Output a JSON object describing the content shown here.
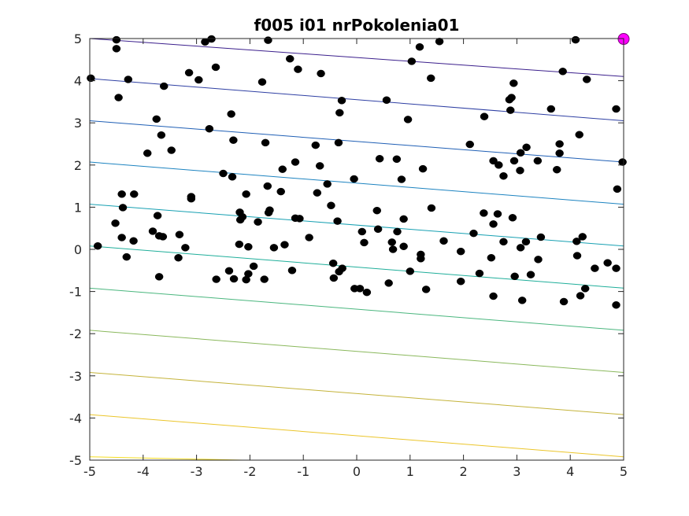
{
  "chart_data": {
    "type": "scatter",
    "title": "f005 i01 nrPokolenia01",
    "xlabel": "",
    "ylabel": "",
    "xlim": [
      -5,
      5
    ],
    "ylim": [
      -5,
      5
    ],
    "xticks": [
      "-5",
      "-4",
      "-3",
      "-2",
      "-1",
      "0",
      "1",
      "2",
      "3",
      "4",
      "5"
    ],
    "yticks": [
      "-5",
      "-4",
      "-3",
      "-2",
      "-1",
      "0",
      "1",
      "2",
      "3",
      "4",
      "5"
    ],
    "grid": false,
    "box": true,
    "contours": {
      "description": "linear function contour lines",
      "levels": [
        {
          "y_at_left": 5.0,
          "y_at_right": 4.1,
          "color": "#3b1f8c"
        },
        {
          "y_at_left": 4.05,
          "y_at_right": 3.05,
          "color": "#2e3fa3"
        },
        {
          "y_at_left": 3.05,
          "y_at_right": 2.07,
          "color": "#1f5fb5"
        },
        {
          "y_at_left": 2.07,
          "y_at_right": 1.07,
          "color": "#1c83c0"
        },
        {
          "y_at_left": 1.07,
          "y_at_right": 0.08,
          "color": "#17a0b2"
        },
        {
          "y_at_left": 0.08,
          "y_at_right": -0.92,
          "color": "#1fae9a"
        },
        {
          "y_at_left": -0.92,
          "y_at_right": -1.92,
          "color": "#4ab67e"
        },
        {
          "y_at_left": -1.92,
          "y_at_right": -2.92,
          "color": "#8ab85c"
        },
        {
          "y_at_left": -2.92,
          "y_at_right": -3.92,
          "color": "#c4b33a"
        },
        {
          "y_at_left": -3.92,
          "y_at_right": -4.92,
          "color": "#ebc52a"
        },
        {
          "y_at_left": -4.92,
          "y_at_right": -5.2,
          "color": "#f5dd20"
        }
      ]
    },
    "series": [
      {
        "marker": "filled-circle",
        "color": "#000000",
        "points": [
          [
            -4.5,
            4.97
          ],
          [
            -4.5,
            4.76
          ],
          [
            -4.98,
            4.06
          ],
          [
            -4.28,
            4.03
          ],
          [
            -4.46,
            3.6
          ],
          [
            -3.61,
            3.87
          ],
          [
            -2.72,
            4.99
          ],
          [
            -2.84,
            4.92
          ],
          [
            -2.64,
            4.32
          ],
          [
            -3.14,
            4.19
          ],
          [
            -2.96,
            4.02
          ],
          [
            -1.66,
            4.96
          ],
          [
            -1.77,
            3.97
          ],
          [
            -1.25,
            4.52
          ],
          [
            -1.1,
            4.27
          ],
          [
            -0.67,
            4.17
          ],
          [
            1.55,
            4.93
          ],
          [
            1.18,
            4.8
          ],
          [
            1.03,
            4.46
          ],
          [
            1.39,
            4.06
          ],
          [
            4.1,
            4.97
          ],
          [
            3.86,
            4.22
          ],
          [
            4.31,
            4.03
          ],
          [
            2.94,
            3.94
          ],
          [
            2.86,
            3.55
          ],
          [
            2.9,
            3.6
          ],
          [
            2.39,
            3.15
          ],
          [
            3.64,
            3.33
          ],
          [
            4.86,
            3.33
          ],
          [
            2.88,
            3.3
          ],
          [
            0.56,
            3.54
          ],
          [
            0.96,
            3.08
          ],
          [
            -0.28,
            3.53
          ],
          [
            -0.32,
            3.24
          ],
          [
            -2.35,
            3.21
          ],
          [
            -2.76,
            2.86
          ],
          [
            -3.75,
            3.09
          ],
          [
            -3.66,
            2.71
          ],
          [
            -3.47,
            2.35
          ],
          [
            -3.92,
            2.28
          ],
          [
            -1.71,
            2.53
          ],
          [
            -0.77,
            2.47
          ],
          [
            -0.34,
            2.53
          ],
          [
            -2.31,
            2.59
          ],
          [
            -1.39,
            1.9
          ],
          [
            -1.15,
            2.07
          ],
          [
            -0.69,
            1.98
          ],
          [
            -2.5,
            1.8
          ],
          [
            -2.33,
            1.72
          ],
          [
            -0.55,
            1.55
          ],
          [
            -0.05,
            1.67
          ],
          [
            0.43,
            2.15
          ],
          [
            0.75,
            2.14
          ],
          [
            0.84,
            1.66
          ],
          [
            1.24,
            1.91
          ],
          [
            2.12,
            2.49
          ],
          [
            2.56,
            2.1
          ],
          [
            2.66,
            2.0
          ],
          [
            2.75,
            1.74
          ],
          [
            2.95,
            2.1
          ],
          [
            3.07,
            2.29
          ],
          [
            3.18,
            2.42
          ],
          [
            3.39,
            2.1
          ],
          [
            3.8,
            2.5
          ],
          [
            3.8,
            2.28
          ],
          [
            3.75,
            1.89
          ],
          [
            4.17,
            2.72
          ],
          [
            4.98,
            2.07
          ],
          [
            3.06,
            1.87
          ],
          [
            -4.4,
            1.31
          ],
          [
            -4.17,
            1.31
          ],
          [
            -3.1,
            1.25
          ],
          [
            -3.1,
            1.2
          ],
          [
            -1.67,
            1.5
          ],
          [
            -1.42,
            1.37
          ],
          [
            -2.07,
            1.31
          ],
          [
            -0.74,
            1.34
          ],
          [
            -0.48,
            1.04
          ],
          [
            -0.36,
            0.67
          ],
          [
            -2.19,
            0.88
          ],
          [
            -2.18,
            0.7
          ],
          [
            -2.14,
            0.77
          ],
          [
            -1.63,
            0.93
          ],
          [
            -1.65,
            0.87
          ],
          [
            -1.85,
            0.65
          ],
          [
            -1.15,
            0.74
          ],
          [
            -1.07,
            0.73
          ],
          [
            -4.38,
            0.99
          ],
          [
            -3.73,
            0.8
          ],
          [
            -4.52,
            0.62
          ],
          [
            -3.82,
            0.43
          ],
          [
            -3.7,
            0.32
          ],
          [
            -3.63,
            0.3
          ],
          [
            -3.32,
            0.35
          ],
          [
            -4.4,
            0.28
          ],
          [
            -4.18,
            0.2
          ],
          [
            -4.85,
            0.08
          ],
          [
            -4.31,
            -0.18
          ],
          [
            -3.21,
            0.04
          ],
          [
            -3.34,
            -0.2
          ],
          [
            -3.7,
            -0.65
          ],
          [
            -2.2,
            0.12
          ],
          [
            -2.03,
            0.06
          ],
          [
            -1.55,
            0.04
          ],
          [
            -1.35,
            0.11
          ],
          [
            -0.89,
            0.28
          ],
          [
            -1.93,
            -0.4
          ],
          [
            -1.73,
            -0.71
          ],
          [
            -2.39,
            -0.51
          ],
          [
            -2.3,
            -0.7
          ],
          [
            -2.63,
            -0.71
          ],
          [
            -2.03,
            -0.58
          ],
          [
            -2.07,
            -0.72
          ],
          [
            -1.21,
            -0.5
          ],
          [
            -0.44,
            -0.33
          ],
          [
            -0.27,
            -0.45
          ],
          [
            -0.33,
            -0.53
          ],
          [
            -0.43,
            -0.68
          ],
          [
            0.06,
            -0.93
          ],
          [
            -0.04,
            -0.93
          ],
          [
            0.19,
            -1.02
          ],
          [
            1.3,
            -0.95
          ],
          [
            0.6,
            -0.8
          ],
          [
            1.0,
            -0.52
          ],
          [
            1.2,
            -0.12
          ],
          [
            1.2,
            -0.22
          ],
          [
            0.1,
            0.42
          ],
          [
            0.14,
            0.16
          ],
          [
            0.38,
            0.92
          ],
          [
            0.4,
            0.48
          ],
          [
            0.66,
            0.17
          ],
          [
            0.76,
            0.42
          ],
          [
            0.68,
            0.0
          ],
          [
            0.88,
            0.07
          ],
          [
            0.88,
            0.72
          ],
          [
            1.4,
            0.98
          ],
          [
            1.63,
            0.2
          ],
          [
            1.95,
            -0.05
          ],
          [
            1.95,
            -0.76
          ],
          [
            2.19,
            0.38
          ],
          [
            2.38,
            0.86
          ],
          [
            2.3,
            -0.57
          ],
          [
            2.56,
            0.6
          ],
          [
            2.64,
            0.84
          ],
          [
            2.56,
            -1.11
          ],
          [
            2.92,
            0.75
          ],
          [
            2.96,
            -0.64
          ],
          [
            3.07,
            0.04
          ],
          [
            3.17,
            0.18
          ],
          [
            3.26,
            -0.6
          ],
          [
            3.45,
            0.29
          ],
          [
            3.4,
            -0.24
          ],
          [
            3.1,
            -1.21
          ],
          [
            3.88,
            -1.24
          ],
          [
            4.23,
            0.3
          ],
          [
            4.12,
            0.19
          ],
          [
            4.13,
            -0.15
          ],
          [
            4.28,
            -0.93
          ],
          [
            4.19,
            -1.1
          ],
          [
            4.46,
            -0.45
          ],
          [
            4.7,
            -0.32
          ],
          [
            4.88,
            1.43
          ],
          [
            4.86,
            -0.45
          ],
          [
            4.86,
            -1.32
          ],
          [
            2.52,
            -0.2
          ],
          [
            2.75,
            0.18
          ]
        ]
      },
      {
        "marker": "filled-circle",
        "color": "#ff00ff",
        "points": [
          [
            5.0,
            4.99
          ]
        ]
      }
    ]
  }
}
